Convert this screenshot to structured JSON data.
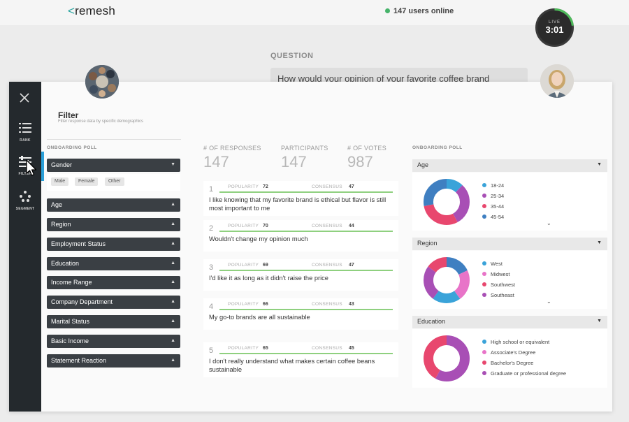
{
  "header": {
    "logo_prefix": "<",
    "logo_text": "remesh",
    "online_text": "147 users online",
    "timer_live": "LIVE",
    "timer_time": "3:01"
  },
  "question": {
    "label": "QUESTION",
    "text": "How would your opinion of your favorite coffee brand change if they committed to sourcing beans from more sustainable sources?"
  },
  "sidenav": [
    {
      "label": "RANK",
      "icon": "list-icon"
    },
    {
      "label": "FILTER",
      "icon": "sliders-icon"
    },
    {
      "label": "SEGMENT",
      "icon": "segment-icon"
    }
  ],
  "filter": {
    "title": "Filter",
    "subtitle": "Filter response data by specific demographics",
    "section_label": "ONBOARDING POLL",
    "gender_label": "Gender",
    "gender_options": [
      "Male",
      "Female",
      "Other"
    ],
    "dropdowns": [
      "Age",
      "Region",
      "Employment Status",
      "Education",
      "Income Range",
      "Company Department",
      "Marital Status",
      "Basic Income",
      "Statement Reaction"
    ]
  },
  "stats": [
    {
      "label": "# OF RESPONSES",
      "value": "147"
    },
    {
      "label": "PARTICIPANTS",
      "value": "147"
    },
    {
      "label": "# OF VOTES",
      "value": "987"
    }
  ],
  "responses": [
    {
      "num": "1",
      "popularity_label": "POPULARITY",
      "popularity": "72",
      "consensus_label": "CONSENSUS",
      "consensus": "47",
      "text": "I like knowing that my favorite brand is ethical but flavor is still most important to me"
    },
    {
      "num": "2",
      "popularity_label": "POPULARITY",
      "popularity": "70",
      "consensus_label": "CONSENSUS",
      "consensus": "44",
      "text": "Wouldn't change my opinion much"
    },
    {
      "num": "3",
      "popularity_label": "POPULARITY",
      "popularity": "69",
      "consensus_label": "CONSENSUS",
      "consensus": "47",
      "text": "I'd like it as long as it didn't raise the price"
    },
    {
      "num": "4",
      "popularity_label": "POPULARITY",
      "popularity": "66",
      "consensus_label": "CONSENSUS",
      "consensus": "43",
      "text": "My go-to brands are all sustainable"
    },
    {
      "num": "5",
      "popularity_label": "POPULARITY",
      "popularity": "65",
      "consensus_label": "CONSENSUS",
      "consensus": "45",
      "text": "I don't really understand what makes certain coffee beans sustainable"
    }
  ],
  "right_panel": {
    "section_label": "ONBOARDING POLL",
    "charts": [
      {
        "title": "Age",
        "legend": [
          {
            "label": "18-24",
            "color": "#3aa3d9"
          },
          {
            "label": "25-34",
            "color": "#a84fb5"
          },
          {
            "label": "35-44",
            "color": "#e8476e"
          },
          {
            "label": "45-54",
            "color": "#3f7fc1"
          }
        ],
        "slices": [
          0.12,
          0.3,
          0.3,
          0.28
        ],
        "slice_colors": [
          "#3aa3d9",
          "#a84fb5",
          "#e8476e",
          "#3f7fc1"
        ]
      },
      {
        "title": "Region",
        "legend": [
          {
            "label": "West",
            "color": "#3aa3d9"
          },
          {
            "label": "Midwest",
            "color": "#e874c8"
          },
          {
            "label": "Southwest",
            "color": "#e8476e"
          },
          {
            "label": "Southeast",
            "color": "#a84fb5"
          }
        ],
        "slices": [
          0.18,
          0.22,
          0.2,
          0.25,
          0.15
        ],
        "slice_colors": [
          "#3f7fc1",
          "#e874c8",
          "#3aa3d9",
          "#a84fb5",
          "#e8476e"
        ]
      },
      {
        "title": "Education",
        "legend": [
          {
            "label": "High school or equivalent",
            "color": "#3aa3d9"
          },
          {
            "label": "Associate's Degree",
            "color": "#e874c8"
          },
          {
            "label": "Bachelor's Degree",
            "color": "#e8476e"
          },
          {
            "label": "Graduate or professional degree",
            "color": "#a84fb5"
          }
        ],
        "slices": [
          0.58,
          0.42
        ],
        "slice_colors": [
          "#a84fb5",
          "#e8476e"
        ]
      }
    ]
  }
}
